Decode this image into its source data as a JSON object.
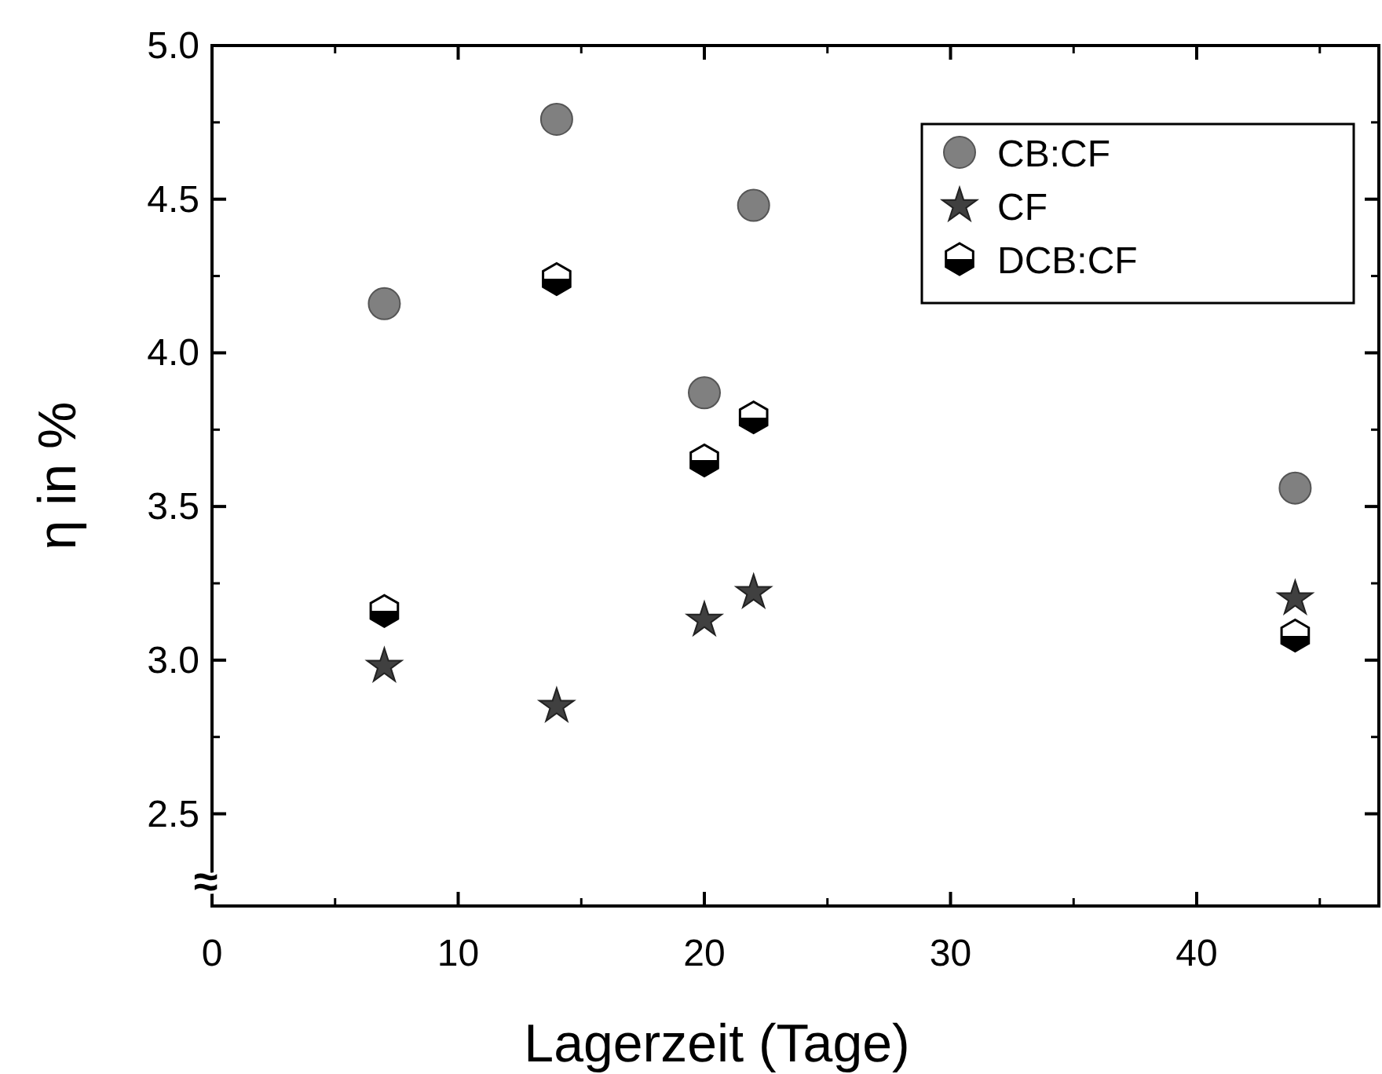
{
  "chart_data": {
    "type": "scatter",
    "xlabel": "Lagerzeit (Tage)",
    "ylabel": "η in %",
    "xlim": [
      0,
      47.4
    ],
    "ylim": [
      2.2,
      5.0
    ],
    "xticks": [
      0,
      10,
      20,
      30,
      40
    ],
    "yticks": [
      {
        "value": 2.5,
        "label": "2.5"
      },
      {
        "value": 3,
        "label": "3.0"
      },
      {
        "value": 3.5,
        "label": "3.5"
      },
      {
        "value": 4,
        "label": "4.0"
      },
      {
        "value": 4.5,
        "label": "4.5"
      },
      {
        "value": 5,
        "label": "5.0"
      }
    ],
    "x": [
      7,
      14,
      20,
      22,
      44
    ],
    "series": [
      {
        "name": "CB:CF",
        "color": "#808080",
        "marker": "circle",
        "values": [
          4.16,
          4.76,
          3.87,
          4.48,
          3.56
        ]
      },
      {
        "name": "CF",
        "color": "#404040",
        "marker": "star",
        "values": [
          2.98,
          2.85,
          3.13,
          3.22,
          3.2
        ]
      },
      {
        "name": "DCB:CF",
        "color": "#000000",
        "values": [
          3.16,
          4.24,
          3.65,
          3.79,
          3.08
        ]
      }
    ],
    "legend": "top right",
    "grid": false,
    "annotations": [
      "≈"
    ]
  }
}
